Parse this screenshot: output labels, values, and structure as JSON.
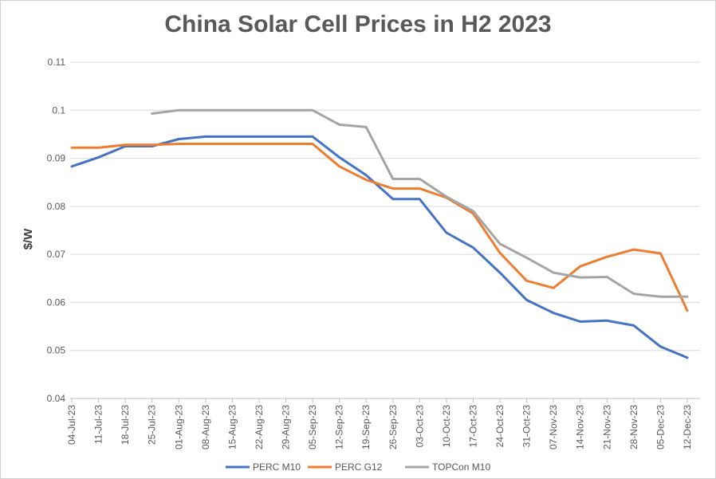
{
  "chart_data": {
    "type": "line",
    "title": "China Solar Cell Prices in H2 2023",
    "ylabel": "$/W",
    "xlabel": "",
    "ylim": [
      0.04,
      0.11
    ],
    "yticks": [
      "0.04",
      "0.05",
      "0.06",
      "0.07",
      "0.08",
      "0.09",
      "0.1",
      "0.11"
    ],
    "categories": [
      "04-Jul-23",
      "11-Jul-23",
      "18-Jul-23",
      "25-Jul-23",
      "01-Aug-23",
      "08-Aug-23",
      "15-Aug-23",
      "22-Aug-23",
      "29-Aug-23",
      "05-Sep-23",
      "12-Sep-23",
      "19-Sep-23",
      "26-Sep-23",
      "03-Oct-23",
      "10-Oct-23",
      "17-Oct-23",
      "24-Oct-23",
      "31-Oct-23",
      "07-Nov-23",
      "14-Nov-23",
      "21-Nov-23",
      "28-Nov-23",
      "05-Dec-23",
      "12-Dec-23"
    ],
    "series": [
      {
        "name": "PERC M10",
        "color": "#4472c4",
        "values": [
          0.0883,
          0.0902,
          0.0925,
          0.0925,
          0.094,
          0.0945,
          0.0945,
          0.0945,
          0.0945,
          0.0945,
          0.0902,
          0.0865,
          0.0815,
          0.0815,
          0.0745,
          0.0714,
          0.0662,
          0.0605,
          0.0578,
          0.056,
          0.0562,
          0.0552,
          0.0508,
          0.0485
        ]
      },
      {
        "name": "PERC G12",
        "color": "#ed7d31",
        "values": [
          0.0922,
          0.0922,
          0.0928,
          0.0928,
          0.093,
          0.093,
          0.093,
          0.093,
          0.093,
          0.093,
          0.0883,
          0.0855,
          0.0837,
          0.0837,
          0.0818,
          0.0785,
          0.0703,
          0.0645,
          0.063,
          0.0675,
          0.0695,
          0.071,
          0.0702,
          0.0583
        ]
      },
      {
        "name": "TOPCon M10",
        "color": "#a5a5a5",
        "values": [
          null,
          null,
          null,
          0.0993,
          0.1,
          0.1,
          0.1,
          0.1,
          0.1,
          0.1,
          0.097,
          0.0965,
          0.0857,
          0.0857,
          0.082,
          0.079,
          0.0722,
          0.0693,
          0.0662,
          0.0652,
          0.0653,
          0.0618,
          0.0612,
          0.0612
        ]
      }
    ],
    "grid": true,
    "legend_position": "bottom"
  }
}
